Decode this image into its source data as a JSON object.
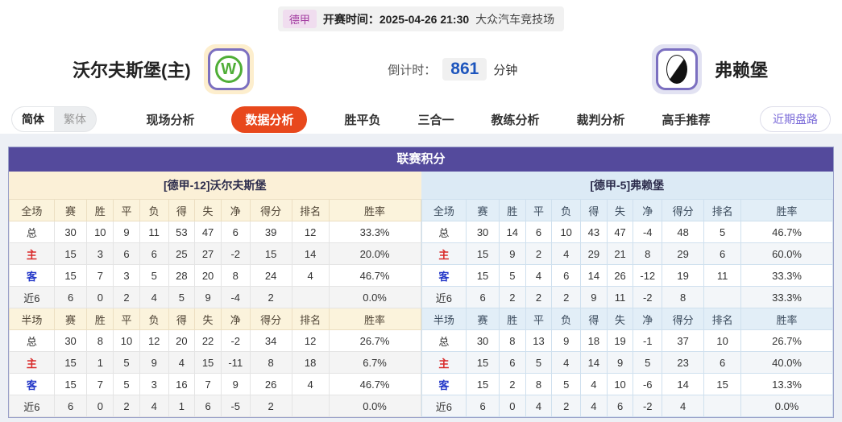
{
  "top_bar": {
    "league": "德甲",
    "kickoff": "开赛时间：2025-04-26 21:30",
    "venue": "大众汽车竞技场"
  },
  "header": {
    "home_team": "沃尔夫斯堡(主)",
    "home_logo_letter": "W",
    "away_team": "弗赖堡",
    "countdown_label": "倒计时：",
    "countdown_value": "861",
    "countdown_unit": "分钟"
  },
  "nav": {
    "lang_simplified": "简体",
    "lang_traditional": "繁体",
    "tabs": [
      "现场分析",
      "数据分析",
      "胜平负",
      "三合一",
      "教练分析",
      "裁判分析",
      "高手推荐"
    ],
    "active_tab": "数据分析",
    "recent_button": "近期盘路"
  },
  "colors": {
    "header_purple": "#544a9c",
    "active_tab_red": "#e8481c",
    "home_bg_cream": "#fbf0d7",
    "away_bg_blue": "#dceaf5",
    "home_label_red": "#d92b2b",
    "away_label_blue": "#2438c8",
    "countdown_blue": "#1d55bd"
  },
  "table": {
    "title": "联赛积分",
    "home_header": "[德甲-12]沃尔夫斯堡",
    "away_header": "[德甲-5]弗赖堡",
    "full_label": "全场",
    "half_label": "半场",
    "columns": [
      "赛",
      "胜",
      "平",
      "负",
      "得",
      "失",
      "净",
      "得分",
      "排名",
      "胜率"
    ],
    "home": {
      "full": [
        {
          "label": "总",
          "values": [
            "30",
            "10",
            "9",
            "11",
            "53",
            "47",
            "6",
            "39",
            "12",
            "33.3%"
          ]
        },
        {
          "label": "主",
          "values": [
            "15",
            "3",
            "6",
            "6",
            "25",
            "27",
            "-2",
            "15",
            "14",
            "20.0%"
          ]
        },
        {
          "label": "客",
          "values": [
            "15",
            "7",
            "3",
            "5",
            "28",
            "20",
            "8",
            "24",
            "4",
            "46.7%"
          ]
        },
        {
          "label": "近6",
          "values": [
            "6",
            "0",
            "2",
            "4",
            "5",
            "9",
            "-4",
            "2",
            "",
            "0.0%"
          ]
        }
      ],
      "half": [
        {
          "label": "总",
          "values": [
            "30",
            "8",
            "10",
            "12",
            "20",
            "22",
            "-2",
            "34",
            "12",
            "26.7%"
          ]
        },
        {
          "label": "主",
          "values": [
            "15",
            "1",
            "5",
            "9",
            "4",
            "15",
            "-11",
            "8",
            "18",
            "6.7%"
          ]
        },
        {
          "label": "客",
          "values": [
            "15",
            "7",
            "5",
            "3",
            "16",
            "7",
            "9",
            "26",
            "4",
            "46.7%"
          ]
        },
        {
          "label": "近6",
          "values": [
            "6",
            "0",
            "2",
            "4",
            "1",
            "6",
            "-5",
            "2",
            "",
            "0.0%"
          ]
        }
      ]
    },
    "away": {
      "full": [
        {
          "label": "总",
          "values": [
            "30",
            "14",
            "6",
            "10",
            "43",
            "47",
            "-4",
            "48",
            "5",
            "46.7%"
          ]
        },
        {
          "label": "主",
          "values": [
            "15",
            "9",
            "2",
            "4",
            "29",
            "21",
            "8",
            "29",
            "6",
            "60.0%"
          ]
        },
        {
          "label": "客",
          "values": [
            "15",
            "5",
            "4",
            "6",
            "14",
            "26",
            "-12",
            "19",
            "11",
            "33.3%"
          ]
        },
        {
          "label": "近6",
          "values": [
            "6",
            "2",
            "2",
            "2",
            "9",
            "11",
            "-2",
            "8",
            "",
            "33.3%"
          ]
        }
      ],
      "half": [
        {
          "label": "总",
          "values": [
            "30",
            "8",
            "13",
            "9",
            "18",
            "19",
            "-1",
            "37",
            "10",
            "26.7%"
          ]
        },
        {
          "label": "主",
          "values": [
            "15",
            "6",
            "5",
            "4",
            "14",
            "9",
            "5",
            "23",
            "6",
            "40.0%"
          ]
        },
        {
          "label": "客",
          "values": [
            "15",
            "2",
            "8",
            "5",
            "4",
            "10",
            "-6",
            "14",
            "15",
            "13.3%"
          ]
        },
        {
          "label": "近6",
          "values": [
            "6",
            "0",
            "4",
            "2",
            "4",
            "6",
            "-2",
            "4",
            "",
            "0.0%"
          ]
        }
      ]
    }
  }
}
